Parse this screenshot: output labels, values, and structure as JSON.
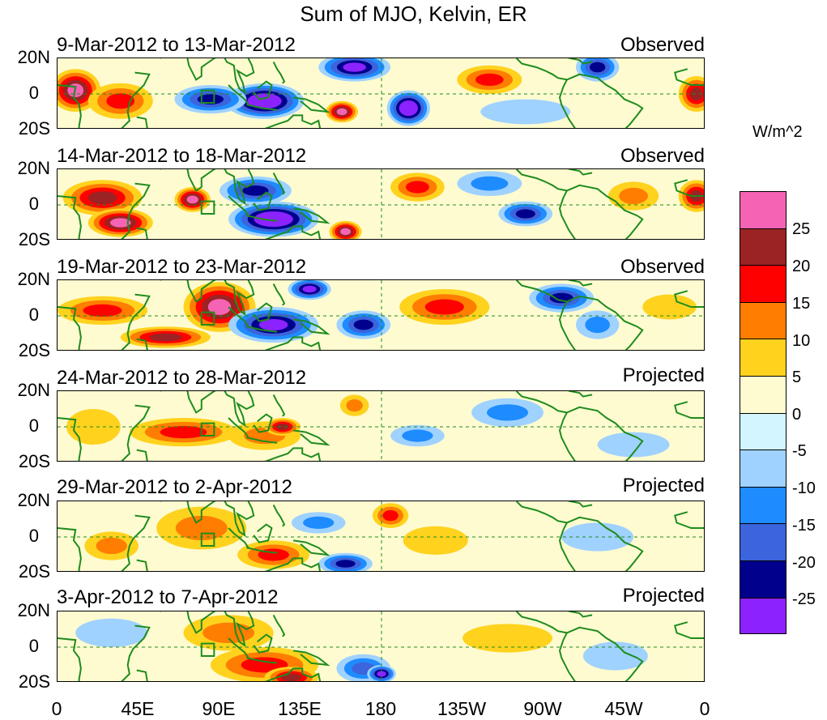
{
  "title": "Sum of MJO, Kelvin, ER",
  "units": "W/m^2",
  "lat_labels": [
    "20N",
    "0",
    "20S"
  ],
  "lon_labels": [
    "0",
    "45E",
    "90E",
    "135E",
    "180",
    "135W",
    "90W",
    "45W",
    "0"
  ],
  "panels": [
    {
      "date": "9-Mar-2012 to 13-Mar-2012",
      "type": "Observed"
    },
    {
      "date": "14-Mar-2012 to 18-Mar-2012",
      "type": "Observed"
    },
    {
      "date": "19-Mar-2012 to 23-Mar-2012",
      "type": "Observed"
    },
    {
      "date": "24-Mar-2012 to 28-Mar-2012",
      "type": "Projected"
    },
    {
      "date": "29-Mar-2012 to 2-Apr-2012",
      "type": "Projected"
    },
    {
      "date": "3-Apr-2012 to 7-Apr-2012",
      "type": "Projected"
    }
  ],
  "colorbar": {
    "colors": [
      "#f564b4",
      "#9b2323",
      "#ff0000",
      "#ff7d00",
      "#ffd21e",
      "#fffbd0",
      "#d2f5ff",
      "#a0d2ff",
      "#1e8cff",
      "#3c64dc",
      "#00008c",
      "#8c23ff"
    ],
    "labels": [
      "25",
      "20",
      "15",
      "10",
      "5",
      "0",
      "-5",
      "-10",
      "-15",
      "-20",
      "-25"
    ]
  },
  "anomaly_features": [
    [
      {
        "lon": 10,
        "lat": 2,
        "rx": 14,
        "ry": 12,
        "level": 25
      },
      {
        "lon": 35,
        "lat": -4,
        "rx": 18,
        "ry": 10,
        "level": 15
      },
      {
        "lon": 115,
        "lat": -4,
        "rx": 22,
        "ry": 10,
        "level": -30
      },
      {
        "lon": 85,
        "lat": -3,
        "rx": 20,
        "ry": 8,
        "level": -20
      },
      {
        "lon": 165,
        "lat": 15,
        "rx": 20,
        "ry": 8,
        "level": -25
      },
      {
        "lon": 195,
        "lat": -8,
        "rx": 12,
        "ry": 10,
        "level": -30
      },
      {
        "lon": 158,
        "lat": -10,
        "rx": 9,
        "ry": 6,
        "level": 25
      },
      {
        "lon": 240,
        "lat": 8,
        "rx": 18,
        "ry": 8,
        "level": 15
      },
      {
        "lon": 300,
        "lat": 15,
        "rx": 12,
        "ry": 8,
        "level": -20
      },
      {
        "lon": 260,
        "lat": -10,
        "rx": 25,
        "ry": 7,
        "level": -5
      },
      {
        "lon": 355,
        "lat": 0,
        "rx": 10,
        "ry": 10,
        "level": 20
      }
    ],
    [
      {
        "lon": 25,
        "lat": 4,
        "rx": 22,
        "ry": 10,
        "level": 20
      },
      {
        "lon": 35,
        "lat": -10,
        "rx": 18,
        "ry": 8,
        "level": 25
      },
      {
        "lon": 75,
        "lat": 3,
        "rx": 10,
        "ry": 7,
        "level": 25
      },
      {
        "lon": 120,
        "lat": -8,
        "rx": 25,
        "ry": 10,
        "level": -30
      },
      {
        "lon": 110,
        "lat": 8,
        "rx": 20,
        "ry": 8,
        "level": -20
      },
      {
        "lon": 160,
        "lat": -15,
        "rx": 9,
        "ry": 6,
        "level": 25
      },
      {
        "lon": 200,
        "lat": 10,
        "rx": 15,
        "ry": 8,
        "level": 15
      },
      {
        "lon": 260,
        "lat": -5,
        "rx": 15,
        "ry": 7,
        "level": -20
      },
      {
        "lon": 240,
        "lat": 12,
        "rx": 18,
        "ry": 7,
        "level": -10
      },
      {
        "lon": 320,
        "lat": 5,
        "rx": 14,
        "ry": 8,
        "level": 10
      },
      {
        "lon": 355,
        "lat": 5,
        "rx": 10,
        "ry": 9,
        "level": 20
      }
    ],
    [
      {
        "lon": 25,
        "lat": 3,
        "rx": 25,
        "ry": 8,
        "level": 15
      },
      {
        "lon": 90,
        "lat": 5,
        "rx": 20,
        "ry": 14,
        "level": 25
      },
      {
        "lon": 60,
        "lat": -12,
        "rx": 25,
        "ry": 6,
        "level": 20
      },
      {
        "lon": 120,
        "lat": -5,
        "rx": 25,
        "ry": 10,
        "level": -25
      },
      {
        "lon": 170,
        "lat": -5,
        "rx": 15,
        "ry": 8,
        "level": -20
      },
      {
        "lon": 140,
        "lat": 15,
        "rx": 12,
        "ry": 6,
        "level": -25
      },
      {
        "lon": 215,
        "lat": 5,
        "rx": 25,
        "ry": 10,
        "level": 15
      },
      {
        "lon": 280,
        "lat": 10,
        "rx": 18,
        "ry": 8,
        "level": -20
      },
      {
        "lon": 300,
        "lat": -5,
        "rx": 12,
        "ry": 8,
        "level": -10
      },
      {
        "lon": 340,
        "lat": 5,
        "rx": 15,
        "ry": 7,
        "level": 5
      }
    ],
    [
      {
        "lon": 70,
        "lat": -3,
        "rx": 30,
        "ry": 8,
        "level": 15
      },
      {
        "lon": 115,
        "lat": -5,
        "rx": 20,
        "ry": 8,
        "level": 10
      },
      {
        "lon": 125,
        "lat": 0,
        "rx": 10,
        "ry": 5,
        "level": 20
      },
      {
        "lon": 165,
        "lat": 12,
        "rx": 8,
        "ry": 6,
        "level": 10
      },
      {
        "lon": 250,
        "lat": 8,
        "rx": 20,
        "ry": 8,
        "level": -10
      },
      {
        "lon": 200,
        "lat": -5,
        "rx": 15,
        "ry": 6,
        "level": -10
      },
      {
        "lon": 320,
        "lat": -10,
        "rx": 20,
        "ry": 7,
        "level": -5
      },
      {
        "lon": 20,
        "lat": 0,
        "rx": 15,
        "ry": 10,
        "level": 5
      }
    ],
    [
      {
        "lon": 80,
        "lat": 5,
        "rx": 25,
        "ry": 12,
        "level": 10
      },
      {
        "lon": 120,
        "lat": -10,
        "rx": 20,
        "ry": 8,
        "level": 15
      },
      {
        "lon": 160,
        "lat": -15,
        "rx": 15,
        "ry": 6,
        "level": -20
      },
      {
        "lon": 185,
        "lat": 12,
        "rx": 10,
        "ry": 7,
        "level": 15
      },
      {
        "lon": 210,
        "lat": -2,
        "rx": 18,
        "ry": 8,
        "level": 5
      },
      {
        "lon": 145,
        "lat": 8,
        "rx": 15,
        "ry": 6,
        "level": -10
      },
      {
        "lon": 300,
        "lat": 0,
        "rx": 20,
        "ry": 8,
        "level": -5
      },
      {
        "lon": 30,
        "lat": -5,
        "rx": 15,
        "ry": 8,
        "level": 10
      }
    ],
    [
      {
        "lon": 115,
        "lat": -10,
        "rx": 30,
        "ry": 10,
        "level": 15
      },
      {
        "lon": 130,
        "lat": -17,
        "rx": 15,
        "ry": 6,
        "level": 20
      },
      {
        "lon": 95,
        "lat": 8,
        "rx": 25,
        "ry": 10,
        "level": 10
      },
      {
        "lon": 170,
        "lat": -12,
        "rx": 15,
        "ry": 8,
        "level": -15
      },
      {
        "lon": 180,
        "lat": -15,
        "rx": 8,
        "ry": 5,
        "level": -25
      },
      {
        "lon": 30,
        "lat": 8,
        "rx": 20,
        "ry": 8,
        "level": -5
      },
      {
        "lon": 250,
        "lat": 5,
        "rx": 25,
        "ry": 8,
        "level": 5
      },
      {
        "lon": 310,
        "lat": -5,
        "rx": 18,
        "ry": 8,
        "level": -5
      }
    ]
  ]
}
